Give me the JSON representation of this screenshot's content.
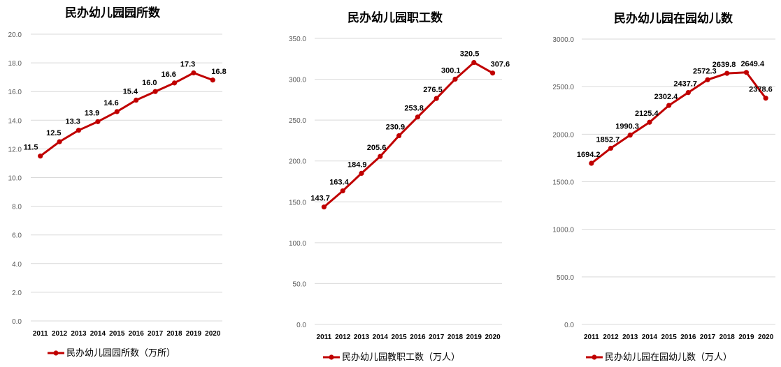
{
  "colors": {
    "series": "#c00000",
    "grid": "#d9d9d9"
  },
  "chart_data": [
    {
      "type": "line",
      "title": "民办幼儿园园所数",
      "x": [
        "2011",
        "2012",
        "2013",
        "2014",
        "2015",
        "2016",
        "2017",
        "2018",
        "2019",
        "2020"
      ],
      "series": [
        {
          "name": "民办幼儿园园所数（万所）",
          "values": [
            11.5,
            12.5,
            13.3,
            13.9,
            14.6,
            15.4,
            16.0,
            16.6,
            17.3,
            16.8
          ],
          "labels": [
            "11.5",
            "12.5",
            "13.3",
            "13.9",
            "14.6",
            "15.4",
            "16.0",
            "16.6",
            "17.3",
            "16.8"
          ]
        }
      ],
      "ylim": [
        0,
        20
      ],
      "yticks": [
        "0.0",
        "2.0",
        "4.0",
        "6.0",
        "8.0",
        "10.0",
        "12.0",
        "14.0",
        "16.0",
        "18.0",
        "20.0"
      ],
      "grid": true,
      "legend": "bottom"
    },
    {
      "type": "line",
      "title": "民办幼儿园职工数",
      "x": [
        "2011",
        "2012",
        "2013",
        "2014",
        "2015",
        "2016",
        "2017",
        "2018",
        "2019",
        "2020"
      ],
      "series": [
        {
          "name": "民办幼儿园教职工数（万人）",
          "values": [
            143.7,
            163.4,
            184.9,
            205.6,
            230.9,
            253.8,
            276.5,
            300.1,
            320.5,
            307.6
          ],
          "labels": [
            "143.7",
            "163.4",
            "184.9",
            "205.6",
            "230.9",
            "253.8",
            "276.5",
            "300.1",
            "320.5",
            "307.6"
          ]
        }
      ],
      "ylim": [
        0,
        350
      ],
      "yticks": [
        "0.0",
        "50.0",
        "100.0",
        "150.0",
        "200.0",
        "250.0",
        "300.0",
        "350.0"
      ],
      "grid": true,
      "legend": "bottom"
    },
    {
      "type": "line",
      "title": "民办幼儿园在园幼儿数",
      "x": [
        "2011",
        "2012",
        "2013",
        "2014",
        "2015",
        "2016",
        "2017",
        "2018",
        "2019",
        "2020"
      ],
      "series": [
        {
          "name": "民办幼儿园在园幼儿数（万人）",
          "values": [
            1694.2,
            1852.7,
            1990.3,
            2125.4,
            2302.4,
            2437.7,
            2572.3,
            2639.8,
            2649.4,
            2378.6
          ],
          "labels": [
            "1694.2",
            "1852.7",
            "1990.3",
            "2125.4",
            "2302.4",
            "2437.7",
            "2572.3",
            "2639.8",
            "2649.4",
            "2378.6"
          ]
        }
      ],
      "ylim": [
        0,
        3000
      ],
      "yticks": [
        "0.0",
        "500.0",
        "1000.0",
        "1500.0",
        "2000.0",
        "2500.0",
        "3000.0"
      ],
      "grid": true,
      "legend": "bottom"
    }
  ]
}
